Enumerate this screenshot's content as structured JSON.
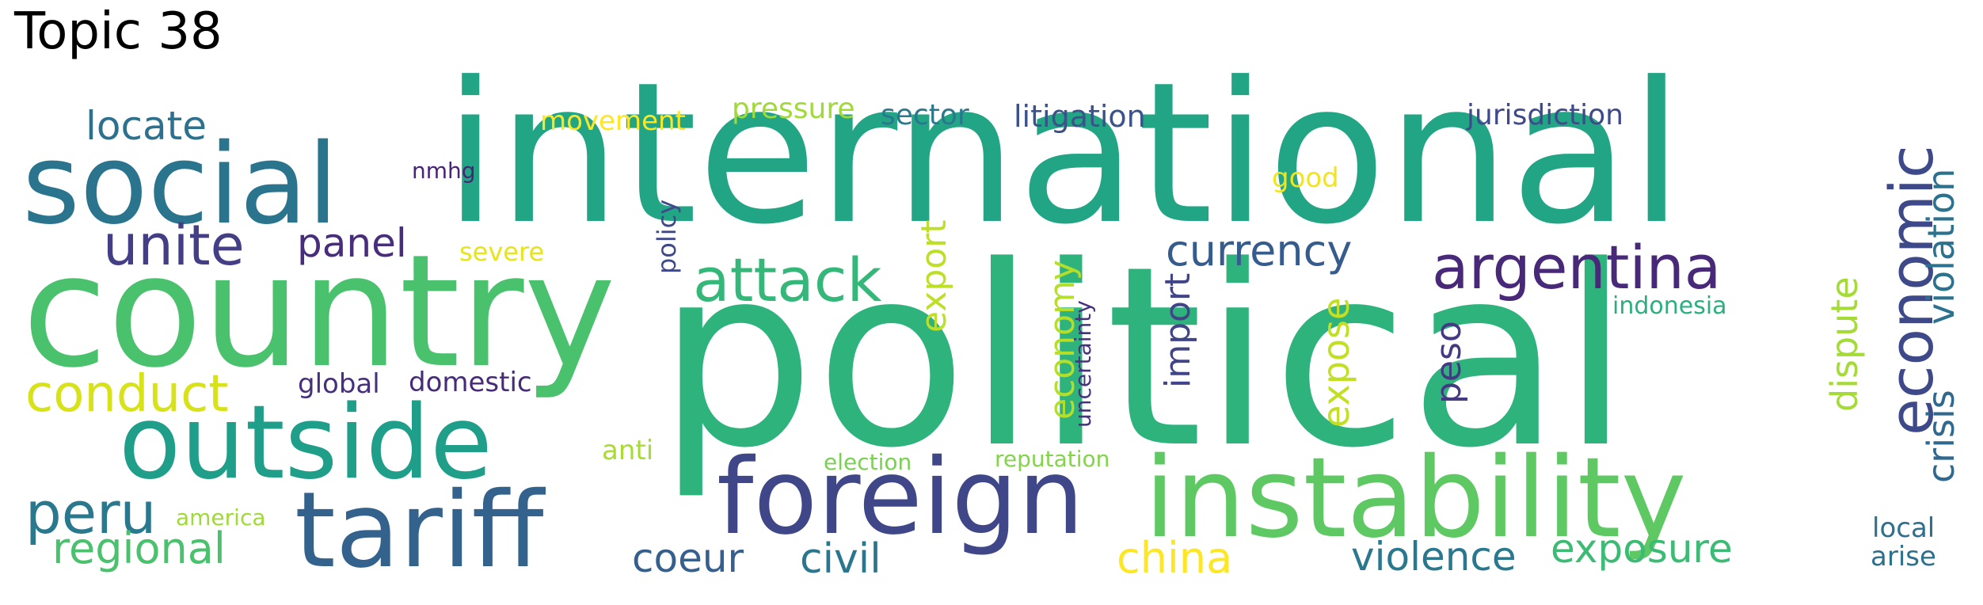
{
  "title": "Topic 38",
  "words": [
    {
      "text": "international",
      "color": "#21a585"
    },
    {
      "text": "political",
      "color": "#2eb37c"
    },
    {
      "text": "country",
      "color": "#4ac16d"
    },
    {
      "text": "social",
      "color": "#2b748e"
    },
    {
      "text": "outside",
      "color": "#1f9e89"
    },
    {
      "text": "foreign",
      "color": "#3f4788"
    },
    {
      "text": "instability",
      "color": "#5ec962"
    },
    {
      "text": "tariff",
      "color": "#33628d"
    },
    {
      "text": "argentina",
      "color": "#482878"
    },
    {
      "text": "attack",
      "color": "#35b779"
    },
    {
      "text": "economic",
      "color": "#3e4989"
    },
    {
      "text": "unite",
      "color": "#433e85"
    },
    {
      "text": "conduct",
      "color": "#d8e219"
    },
    {
      "text": "peru",
      "color": "#2a788e"
    },
    {
      "text": "locate",
      "color": "#2c728e"
    },
    {
      "text": "panel",
      "color": "#472d7b"
    },
    {
      "text": "currency",
      "color": "#365c8d"
    },
    {
      "text": "regional",
      "color": "#4ac16d"
    },
    {
      "text": "coeur",
      "color": "#355f8d"
    },
    {
      "text": "civil",
      "color": "#2a768e"
    },
    {
      "text": "china",
      "color": "#fde725"
    },
    {
      "text": "violence",
      "color": "#2a788e"
    },
    {
      "text": "exposure",
      "color": "#3cbb75"
    },
    {
      "text": "export",
      "color": "#bddf26"
    },
    {
      "text": "expose",
      "color": "#c2df23"
    },
    {
      "text": "economy",
      "color": "#b5de2b"
    },
    {
      "text": "import",
      "color": "#414487"
    },
    {
      "text": "peso",
      "color": "#443a83"
    },
    {
      "text": "dispute",
      "color": "#a5db36"
    },
    {
      "text": "crisis",
      "color": "#31688e"
    },
    {
      "text": "violation",
      "color": "#2c728e"
    },
    {
      "text": "movement",
      "color": "#fde725"
    },
    {
      "text": "pressure",
      "color": "#a0da39"
    },
    {
      "text": "sector",
      "color": "#2a788e"
    },
    {
      "text": "litigation",
      "color": "#3b528b"
    },
    {
      "text": "jurisdiction",
      "color": "#3e4a89"
    },
    {
      "text": "nmhg",
      "color": "#482475"
    },
    {
      "text": "good",
      "color": "#f1e51d"
    },
    {
      "text": "severe",
      "color": "#e7e419"
    },
    {
      "text": "policy",
      "color": "#3f4889"
    },
    {
      "text": "uncertainty",
      "color": "#46327e"
    },
    {
      "text": "global",
      "color": "#46307e"
    },
    {
      "text": "domestic",
      "color": "#472a7a"
    },
    {
      "text": "indonesia",
      "color": "#2ab07f"
    },
    {
      "text": "anti",
      "color": "#a8db34"
    },
    {
      "text": "election",
      "color": "#7ad151"
    },
    {
      "text": "reputation",
      "color": "#84d44b"
    },
    {
      "text": "america",
      "color": "#a0da39"
    },
    {
      "text": "local",
      "color": "#2d708e"
    },
    {
      "text": "arise",
      "color": "#2d708e"
    }
  ]
}
